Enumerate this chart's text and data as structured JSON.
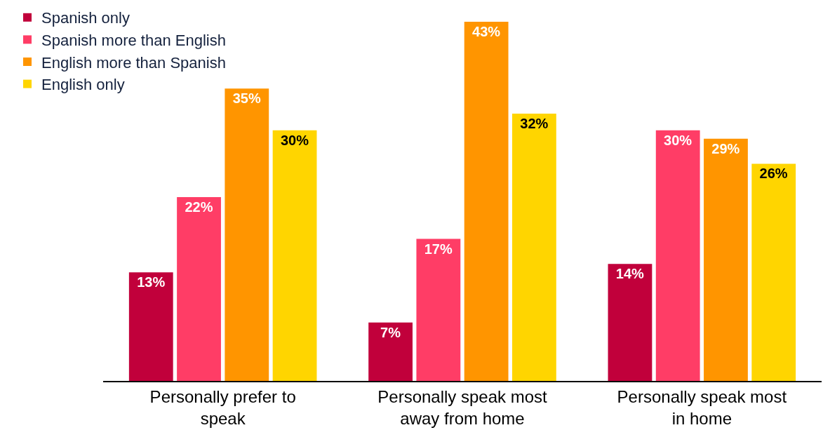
{
  "chart_data": {
    "type": "bar",
    "categories": [
      "Personally prefer to speak",
      "Personally speak most away from home",
      "Personally speak most in home"
    ],
    "series": [
      {
        "name": "Spanish only",
        "color": "#c1003b",
        "values": [
          13,
          7,
          14
        ],
        "value_labels": [
          "13%",
          "7%",
          "14%"
        ]
      },
      {
        "name": "Spanish more than English",
        "color": "#ff3d66",
        "values": [
          22,
          17,
          30
        ],
        "value_labels": [
          "22%",
          "17%",
          "30%"
        ]
      },
      {
        "name": "English more than Spanish",
        "color": "#ff9500",
        "values": [
          35,
          43,
          29
        ],
        "value_labels": [
          "35%",
          "43%",
          "29%"
        ]
      },
      {
        "name": "English only",
        "color": "#ffd500",
        "values": [
          30,
          32,
          26
        ],
        "value_labels": [
          "30%",
          "32%",
          "26%"
        ]
      }
    ],
    "tick_labels": "x",
    "legend": "top left"
  }
}
